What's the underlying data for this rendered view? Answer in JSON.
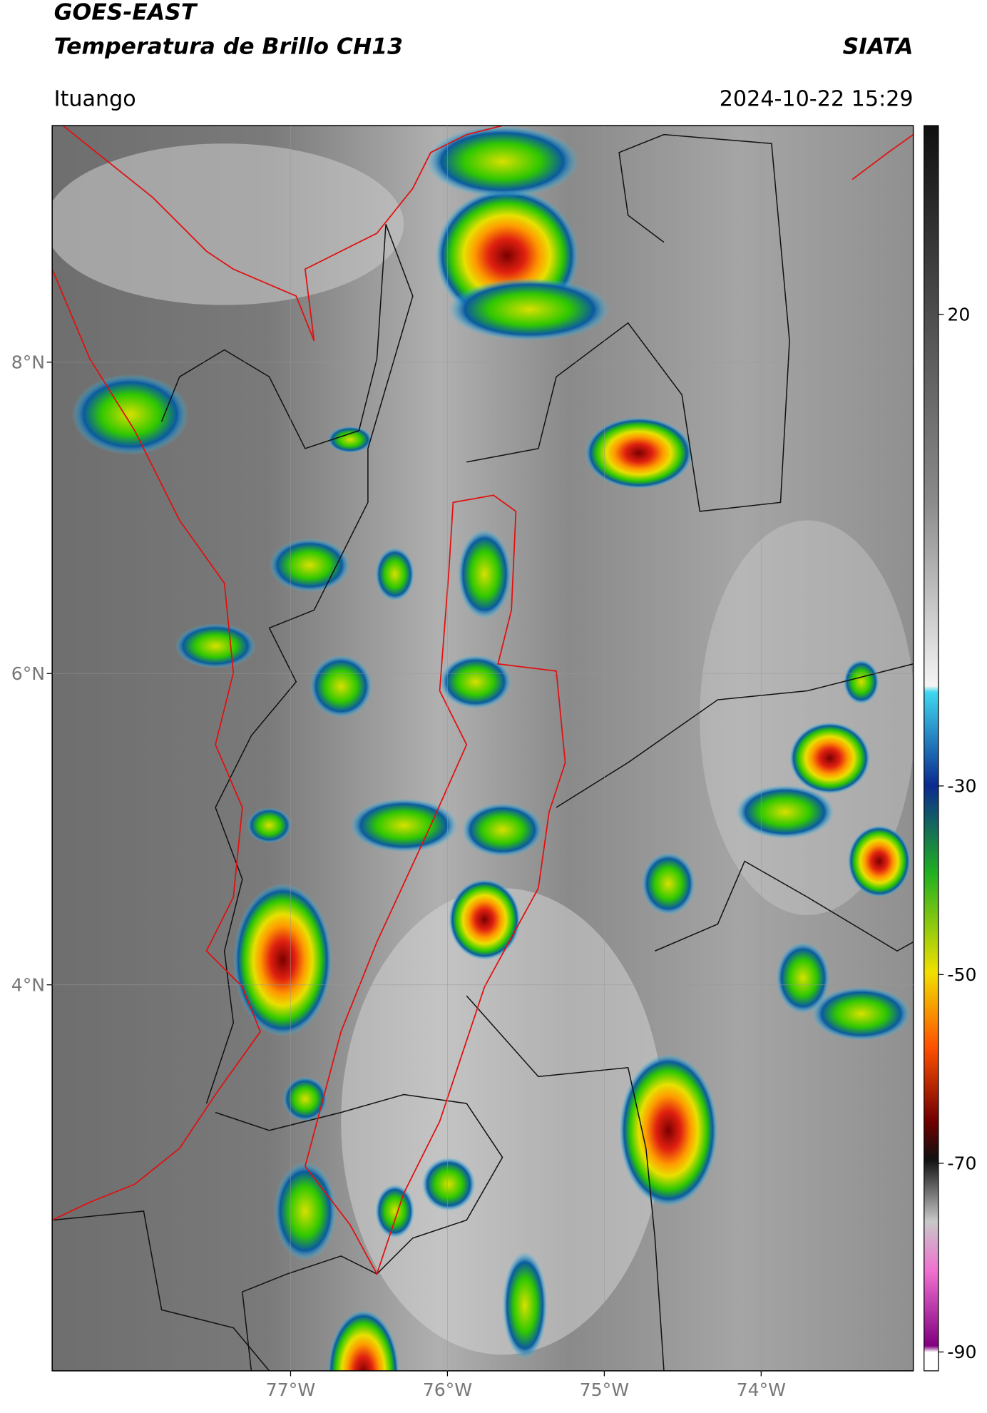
{
  "header": {
    "title_line1": "GOES-EAST",
    "title_line2": "Temperatura de Brillo CH13",
    "source": "SIATA",
    "location": "Ituango",
    "datetime": "2024-10-22 15:29"
  },
  "map": {
    "xlim": [
      -78.52,
      -73.03
    ],
    "ylim": [
      1.52,
      9.52
    ],
    "xticks": [
      {
        "value": -77,
        "label": "77°W"
      },
      {
        "value": -76,
        "label": "76°W"
      },
      {
        "value": -75,
        "label": "75°W"
      },
      {
        "value": -74,
        "label": "74°W"
      }
    ],
    "yticks": [
      {
        "value": 8,
        "label": "8°N"
      },
      {
        "value": 6,
        "label": "6°N"
      },
      {
        "value": 4,
        "label": "4°N"
      }
    ]
  },
  "colorbar": {
    "lim": [
      -92,
      40
    ],
    "ticks": [
      20,
      -30,
      -50,
      -70,
      -90
    ]
  }
}
